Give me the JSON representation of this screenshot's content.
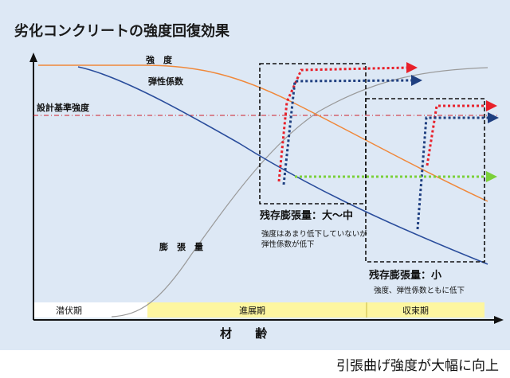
{
  "title": "劣化コンクリートの強度回復効果",
  "labels": {
    "strength": "強　度",
    "elastic_modulus": "弾性係数",
    "design_strength": "設計基準強度",
    "expansion": "膨　張　量",
    "x_axis": "材 齢"
  },
  "phases": {
    "latent": "潜伏期",
    "progress": "進展期",
    "convergence": "収束期"
  },
  "box_large": {
    "title": "残存膨張量：大～中",
    "note_line1": "強度はあまり低下していないが",
    "note_line2": "弾性係数が低下"
  },
  "box_small": {
    "title": "残存膨張量：小",
    "note": "強度、弾性係数ともに低下"
  },
  "caption": "引張曲げ強度が大幅に向上",
  "colors": {
    "background": "#dde8f5",
    "strength_curve": "#f0883a",
    "elastic_curve": "#2a4d9c",
    "expansion_curve": "#9a9a9a",
    "design_line": "#d0202a",
    "red_arrow": "#e8202a",
    "blue_arrow": "#1f3f80",
    "green_arrow": "#7bd03a",
    "phase_band": "#fdf6a0"
  }
}
